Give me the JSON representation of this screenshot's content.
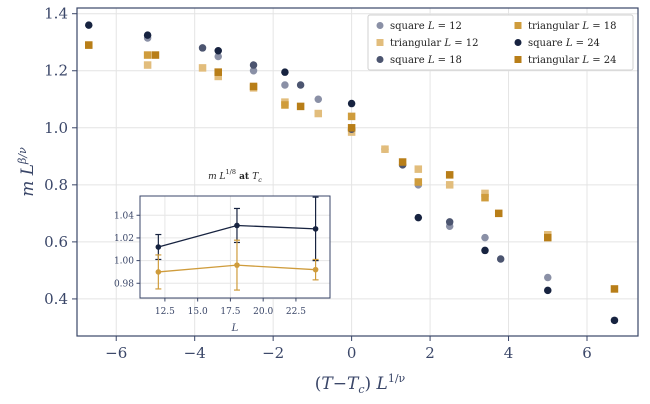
{
  "chart_data": [
    {
      "type": "scatter",
      "xlabel": "(T−Tᴄ) L^{1/ν}",
      "ylabel": "m L^{β/ν}",
      "xlim": [
        -7,
        7.3
      ],
      "ylim": [
        0.27,
        1.42
      ],
      "xticks": [
        -6,
        -4,
        -2,
        0,
        2,
        4,
        6
      ],
      "yticks": [
        0.4,
        0.6,
        0.8,
        1.0,
        1.2,
        1.4
      ],
      "xtick_labels": [
        "−6",
        "−4",
        "−2",
        "0",
        "2",
        "4",
        "6"
      ],
      "ytick_labels": [
        "0.4",
        "0.6",
        "0.8",
        "1.0",
        "1.2",
        "1.4"
      ],
      "grid": true,
      "legend_position": "top-right",
      "series": [
        {
          "name": "square L=12",
          "marker": "circle",
          "color": "#8a90a6",
          "x": [
            -5.2,
            -3.4,
            -2.5,
            -1.7,
            -0.85,
            0,
            0.85,
            1.7,
            2.5,
            3.4,
            5.0
          ],
          "y": [
            1.315,
            1.25,
            1.2,
            1.15,
            1.1,
            0.99,
            0.925,
            0.8,
            0.655,
            0.615,
            0.475
          ]
        },
        {
          "name": "triangular L=12",
          "marker": "square",
          "color": "#e2bd7c",
          "x": [
            -6.7,
            -5.2,
            -3.8,
            -3.4,
            -2.5,
            -1.7,
            -0.85,
            0,
            0.85,
            1.7,
            2.5,
            3.4,
            5.0
          ],
          "y": [
            1.29,
            1.22,
            1.21,
            1.18,
            1.14,
            1.09,
            1.05,
            0.985,
            0.925,
            0.855,
            0.8,
            0.77,
            0.625
          ]
        },
        {
          "name": "square L=18",
          "marker": "circle",
          "color": "#4c5570",
          "x": [
            -3.8,
            -2.5,
            -1.3,
            0,
            1.3,
            2.5,
            3.8
          ],
          "y": [
            1.28,
            1.22,
            1.15,
            0.995,
            0.87,
            0.67,
            0.54
          ]
        },
        {
          "name": "triangular L=18",
          "marker": "square",
          "color": "#cf9c3c",
          "x": [
            -5.2,
            -3.4,
            -1.7,
            0,
            1.7,
            3.4
          ],
          "y": [
            1.255,
            1.195,
            1.08,
            1.04,
            0.81,
            0.755
          ]
        },
        {
          "name": "square L=24",
          "marker": "circle",
          "color": "#172340",
          "x": [
            -6.7,
            -5.2,
            -3.4,
            -1.7,
            0,
            1.7,
            3.4,
            5.0,
            6.7
          ],
          "y": [
            1.36,
            1.325,
            1.27,
            1.195,
            1.085,
            0.685,
            0.57,
            0.43,
            0.325
          ]
        },
        {
          "name": "triangular L=24",
          "marker": "square",
          "color": "#b87e18",
          "x": [
            -6.7,
            -5.0,
            -3.4,
            -2.5,
            -1.3,
            0,
            1.3,
            2.5,
            3.75,
            5.0,
            6.7
          ],
          "y": [
            1.29,
            1.255,
            1.195,
            1.145,
            1.075,
            1.0,
            0.88,
            0.835,
            0.7,
            0.615,
            0.435
          ]
        }
      ]
    },
    {
      "type": "line",
      "title": "m L^{1/8} at Tᴄ",
      "xlabel": "L",
      "xlim": [
        10.6,
        25.1
      ],
      "ylim": [
        0.967,
        1.057
      ],
      "xticks": [
        12.5,
        15.0,
        17.5,
        20.0,
        22.5
      ],
      "yticks": [
        0.98,
        1.0,
        1.02,
        1.04
      ],
      "xtick_labels": [
        "12.5",
        "15.0",
        "17.5",
        "20.0",
        "22.5"
      ],
      "ytick_labels": [
        "0.98",
        "1.00",
        "1.02",
        "1.04"
      ],
      "grid": true,
      "series": [
        {
          "name": "square",
          "color": "#172340",
          "x": [
            12,
            18,
            24
          ],
          "y": [
            1.012,
            1.031,
            1.028
          ],
          "err": [
            0.011,
            0.015,
            0.028
          ]
        },
        {
          "name": "triangular",
          "color": "#cf9c3c",
          "x": [
            12,
            18,
            24
          ],
          "y": [
            0.99,
            0.996,
            0.992
          ],
          "err": [
            0.015,
            0.022,
            0.009
          ]
        }
      ]
    }
  ]
}
